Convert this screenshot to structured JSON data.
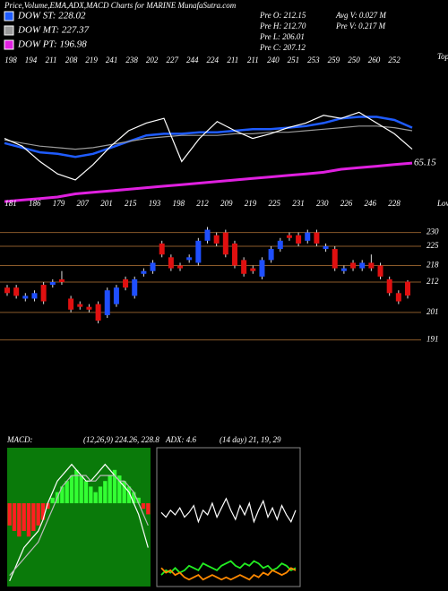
{
  "header": {
    "title": "Price,Volume,EMA,ADX,MACD Charts for MARINE MunafaSutra.com",
    "stats": [
      "Pre  O: 212.15",
      "Pre  H: 212.70",
      "Pre  L: 206.01",
      "Pre  C: 207.12",
      "Avg V: 0.027 M",
      "Pre  V: 0.217 M"
    ]
  },
  "chart_data": [
    {
      "type": "ema",
      "ylim": [
        0,
        100
      ],
      "tops": [
        "198",
        "194",
        "211",
        "208",
        "219",
        "241",
        "238",
        "202",
        "227",
        "244",
        "224",
        "211",
        "211",
        "240",
        "251",
        "253",
        "259",
        "250",
        "260",
        "252"
      ],
      "tops_label": "Tops",
      "lows": [
        "181",
        "186",
        "179",
        "207",
        "201",
        "215",
        "193",
        "198",
        "212",
        "209",
        "219",
        "225",
        "231",
        "230",
        "226",
        "246",
        "228"
      ],
      "lows_label": "Lows",
      "annotation": "65.15",
      "series": [
        {
          "name": "DOW ST: 228.02",
          "color": "#1f5cff",
          "values": [
            42,
            39,
            36,
            35,
            33,
            35,
            39,
            43,
            47,
            48,
            48,
            49,
            49,
            50,
            51,
            51,
            52,
            53,
            55,
            58,
            59,
            59,
            57,
            52
          ]
        },
        {
          "name": "DOW MT: 227.37",
          "color": "#9a9a9a",
          "values": [
            44,
            42,
            40,
            39,
            38,
            39,
            41,
            43,
            45,
            46,
            47,
            47,
            47,
            48,
            48,
            49,
            49,
            50,
            51,
            52,
            53,
            53,
            52,
            50
          ]
        },
        {
          "name": "DOW PT: 196.98",
          "color": "#e020e0",
          "values": [
            4,
            5,
            6,
            7,
            9,
            10,
            11,
            12,
            13,
            14,
            15,
            16,
            17,
            18,
            19,
            20,
            21,
            22,
            23,
            25,
            26,
            27,
            28,
            29
          ]
        },
        {
          "color": "#ffffff",
          "values": [
            45,
            40,
            30,
            22,
            18,
            28,
            40,
            50,
            55,
            58,
            30,
            45,
            56,
            50,
            45,
            48,
            52,
            55,
            60,
            58,
            62,
            55,
            48,
            38
          ]
        }
      ]
    },
    {
      "type": "candlestick",
      "ylim": [
        186,
        238
      ],
      "yticks": [
        230,
        225,
        218,
        212,
        201,
        191
      ],
      "up_color": "#1f4fff",
      "down_color": "#e01010",
      "grid_color": "#8a5a2a",
      "open": [
        210,
        210,
        206,
        206,
        211,
        211,
        213,
        206,
        204,
        203,
        204,
        200,
        204,
        213,
        207,
        215,
        216,
        226,
        221,
        218,
        220,
        219,
        227,
        229,
        230,
        226,
        220,
        217,
        214,
        220,
        224,
        229,
        229,
        227,
        230,
        224,
        224,
        216,
        219,
        217,
        219,
        218,
        213,
        208,
        212.15
      ],
      "high": [
        211,
        211,
        208,
        209,
        212,
        213,
        216,
        207,
        205,
        204,
        205,
        210,
        211,
        214,
        214,
        217,
        220,
        227,
        222,
        219,
        222,
        228,
        232,
        230,
        231,
        227,
        221,
        218,
        221,
        225,
        228,
        230,
        230,
        231,
        231,
        226,
        225,
        218,
        220,
        220,
        222,
        219,
        214,
        209,
        212.7
      ],
      "low": [
        207,
        206,
        205,
        205,
        204,
        210,
        211,
        201,
        202,
        201,
        197,
        199,
        203,
        209,
        206,
        214,
        215,
        221,
        216,
        216,
        219,
        218,
        226,
        225,
        221,
        217,
        214,
        215,
        213,
        219,
        223,
        227,
        225,
        226,
        225,
        223,
        216,
        215,
        216,
        216,
        216,
        213,
        207,
        204,
        206.01
      ],
      "close": [
        208,
        207,
        207,
        208,
        205,
        212,
        212,
        202,
        203,
        202,
        198,
        209,
        210,
        210,
        213,
        216,
        219,
        222,
        217,
        217,
        221,
        227,
        231,
        226,
        222,
        218,
        215,
        216,
        220,
        224,
        227,
        228,
        226,
        230,
        226,
        225,
        217,
        217,
        217,
        219,
        217,
        214,
        208,
        205,
        207.12
      ]
    },
    {
      "type": "macd",
      "title": "MACD:",
      "subtitle": "(12,26,9) 224.26, 228.8",
      "ylim": [
        -15,
        10
      ],
      "background": "#0a7a0a",
      "positive_color": "#33ff33",
      "negative_color": "#ff2020",
      "histogram": [
        -4,
        -5,
        -6,
        -5,
        -6,
        -5,
        -4,
        -3,
        -1,
        1,
        2,
        3,
        4,
        5,
        6,
        5,
        4,
        3,
        2,
        3,
        4,
        5,
        6,
        5,
        4,
        3,
        2,
        1,
        -1,
        -2
      ],
      "series": [
        {
          "color": "#ffffff",
          "values": [
            -14,
            -12,
            -10,
            -8,
            -7,
            -6,
            -5,
            -3,
            0,
            2,
            4,
            5,
            6,
            7,
            6,
            5,
            4,
            4,
            5,
            6,
            7,
            6,
            5,
            4,
            3,
            2,
            0,
            -2,
            -5,
            -8
          ]
        },
        {
          "color": "#bbbbbb",
          "values": [
            -13,
            -12,
            -11,
            -10,
            -9,
            -8,
            -7,
            -5,
            -3,
            -1,
            1,
            3,
            4,
            5,
            5,
            5,
            5,
            4,
            4,
            5,
            5,
            5,
            5,
            4,
            4,
            3,
            2,
            0,
            -2,
            -4
          ]
        }
      ]
    },
    {
      "type": "adx",
      "title": "ADX: 4.6",
      "subtitle": "(14 day) 21, 19, 29",
      "ylim": [
        0,
        60
      ],
      "background": "#000000",
      "series": [
        {
          "color": "#ffffff",
          "values": [
            32,
            30,
            33,
            31,
            34,
            30,
            32,
            35,
            28,
            33,
            31,
            36,
            30,
            34,
            38,
            33,
            29,
            35,
            31,
            36,
            28,
            33,
            37,
            30,
            34,
            29,
            35,
            31,
            28,
            33
          ]
        },
        {
          "color": "#22ee22",
          "values": [
            5,
            7,
            6,
            8,
            6,
            7,
            9,
            8,
            7,
            10,
            9,
            8,
            7,
            9,
            10,
            11,
            9,
            8,
            10,
            9,
            11,
            10,
            8,
            9,
            7,
            8,
            10,
            9,
            7,
            8
          ]
        },
        {
          "color": "#ff8800",
          "values": [
            8,
            6,
            7,
            5,
            6,
            4,
            3,
            4,
            5,
            3,
            4,
            5,
            4,
            3,
            4,
            3,
            4,
            5,
            4,
            3,
            5,
            4,
            6,
            5,
            7,
            6,
            5,
            6,
            8,
            7
          ]
        }
      ]
    }
  ]
}
